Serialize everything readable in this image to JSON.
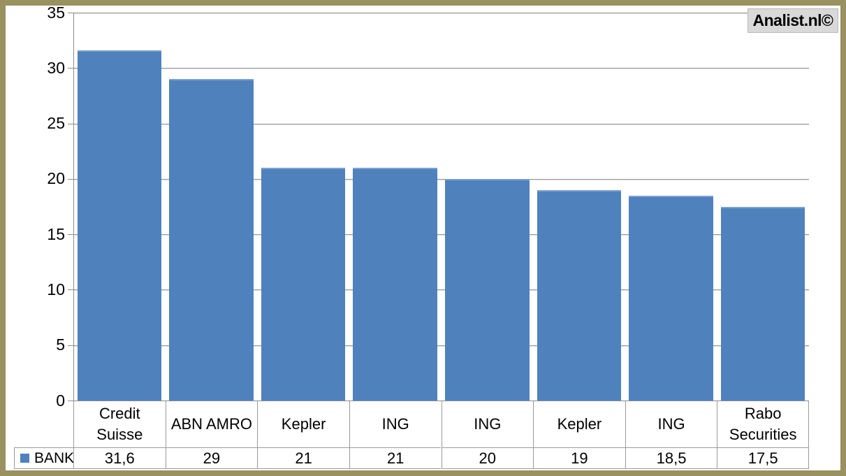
{
  "watermark": {
    "text": "Analist.nl©",
    "background": "#d9d9d9"
  },
  "legend": {
    "series_label": "BANK",
    "swatch_color": "#4f81bd"
  },
  "chart_data": {
    "type": "bar",
    "title": "",
    "categories": [
      "Credit Suisse",
      "ABN AMRO",
      "Kepler",
      "ING",
      "ING",
      "Kepler",
      "ING",
      "Rabo Securities"
    ],
    "series": [
      {
        "name": "BANK",
        "color": "#4f81bd",
        "values": [
          31.6,
          29,
          21,
          21,
          20,
          19,
          18.5,
          17.5
        ]
      }
    ],
    "value_labels": [
      "31,6",
      "29",
      "21",
      "21",
      "20",
      "19",
      "18,5",
      "17,5"
    ],
    "xlabel": "",
    "ylabel": "",
    "ylim": [
      0,
      35
    ],
    "yticks": [
      0,
      5,
      10,
      15,
      20,
      25,
      30,
      35
    ],
    "ytick_labels": [
      "0",
      "5",
      "10",
      "15",
      "20",
      "25",
      "30",
      "35"
    ],
    "grid": true,
    "legend_position": "bottom-left-data-table",
    "bar_color": "#4f81bd",
    "frame_border_color": "#99915f"
  }
}
